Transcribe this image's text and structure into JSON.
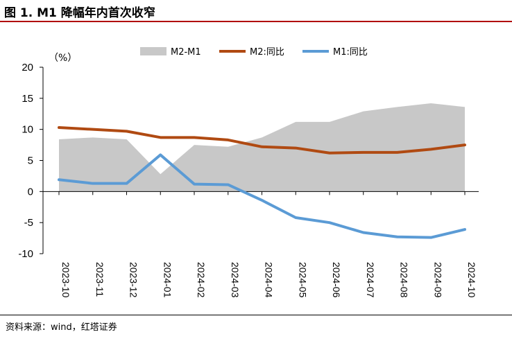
{
  "figure": {
    "title": "图 1. M1 降幅年内首次收窄",
    "source": "资料来源：wind，红塔证券"
  },
  "chart_data": {
    "type": "line",
    "unit_label": "（%）",
    "categories": [
      "2023-10",
      "2023-11",
      "2023-12",
      "2024-01",
      "2024-02",
      "2024-03",
      "2024-04",
      "2024-05",
      "2024-06",
      "2024-07",
      "2024-08",
      "2024-09",
      "2024-10"
    ],
    "ylim": [
      -10,
      20
    ],
    "yticks": [
      -10,
      -5,
      0,
      5,
      10,
      15,
      20
    ],
    "legend_position": "top",
    "grid": false,
    "series": [
      {
        "name": "M2-M1",
        "kind": "area",
        "color": "#c8c8c8",
        "values": [
          8.4,
          8.7,
          8.4,
          2.8,
          7.5,
          7.2,
          8.7,
          11.2,
          11.2,
          12.9,
          13.6,
          14.2,
          13.6
        ]
      },
      {
        "name": "M2:同比",
        "kind": "line",
        "color": "#b04a12",
        "values": [
          10.3,
          10.0,
          9.7,
          8.7,
          8.7,
          8.3,
          7.2,
          7.0,
          6.2,
          6.3,
          6.3,
          6.8,
          7.5
        ]
      },
      {
        "name": "M1:同比",
        "kind": "line",
        "color": "#5b9bd5",
        "values": [
          1.9,
          1.3,
          1.3,
          5.9,
          1.2,
          1.1,
          -1.4,
          -4.2,
          -5.0,
          -6.6,
          -7.3,
          -7.4,
          -6.1
        ]
      }
    ]
  }
}
